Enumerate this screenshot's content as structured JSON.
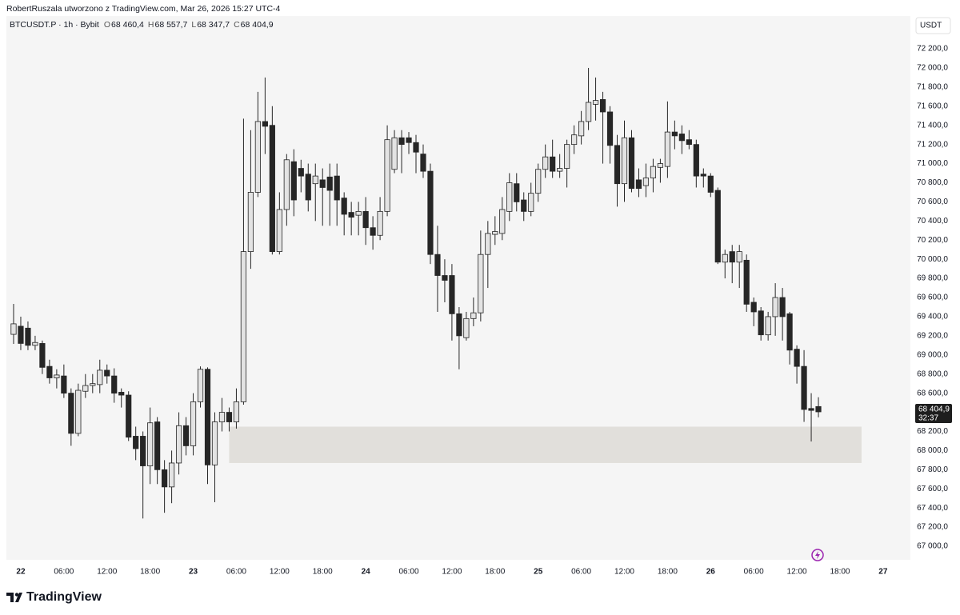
{
  "header": {
    "credit": "RobertRuszala utworzono z TradingView.com, Mar 26, 2026 15:27 UTC-4",
    "symbol": "BTCUSDT.P · 1h · Bybit",
    "ohlc": [
      {
        "key": "O",
        "value": "68 460,4"
      },
      {
        "key": "H",
        "value": "68 557,7"
      },
      {
        "key": "L",
        "value": "68 347,7"
      },
      {
        "key": "C",
        "value": "68 404,9"
      }
    ]
  },
  "currency": "USDT",
  "price_tag": {
    "price": "68 404,9",
    "countdown": "32:37"
  },
  "brand": "TradingView",
  "chart_data": {
    "type": "candlestick",
    "x": [
      -1,
      0,
      1,
      2,
      3,
      4,
      5,
      6,
      7,
      8,
      9,
      10,
      11,
      12,
      13,
      14,
      15,
      16,
      17,
      18,
      19,
      20,
      21,
      22,
      23,
      24,
      25,
      26,
      27,
      28,
      29,
      30,
      31,
      32,
      33,
      34,
      35,
      36,
      37,
      38,
      39,
      40,
      41,
      42,
      43,
      44,
      45,
      46,
      47,
      48,
      49,
      50,
      51,
      52,
      53,
      54,
      55,
      56,
      57,
      58,
      59,
      60,
      61,
      62,
      63,
      64,
      65,
      66,
      67,
      68,
      69,
      70,
      71,
      72,
      73,
      74,
      75,
      76,
      77,
      78,
      79,
      80,
      81,
      82,
      83,
      84,
      85,
      86,
      87,
      88,
      89,
      90,
      91,
      92,
      93,
      94,
      95,
      96,
      97,
      98,
      99,
      100,
      101,
      102,
      103,
      104,
      105,
      106,
      107,
      108,
      109,
      110,
      111
    ],
    "open": [
      69215,
      69300,
      69280,
      69100,
      69120,
      68880,
      68760,
      68780,
      68600,
      68180,
      68620,
      68680,
      68690,
      68840,
      68780,
      68610,
      68580,
      68150,
      68150,
      67840,
      68300,
      67800,
      67620,
      67870,
      68260,
      68050,
      68510,
      68850,
      67850,
      68300,
      68400,
      68300,
      68510,
      70080,
      70700,
      71440,
      71400,
      70080,
      70520,
      71020,
      70950,
      70890,
      70790,
      70830,
      70860,
      70870,
      70640,
      70490,
      70460,
      70500,
      70330,
      70250,
      70500,
      70940,
      71270,
      71270,
      71220,
      71100,
      70920,
      70050,
      69830,
      69830,
      69430,
      69180,
      69380,
      69440,
      70050,
      70260,
      70270,
      70500,
      70790,
      70620,
      70500,
      70690,
      70940,
      71070,
      70920,
      70950,
      71200,
      71290,
      71440,
      71620,
      71670,
      71540,
      71190,
      70790,
      71270,
      70830,
      70770,
      70850,
      70960,
      70970,
      71330,
      71310,
      71250,
      71200,
      70890,
      70870,
      70720,
      69970,
      70080,
      69970,
      69990,
      69550,
      69460,
      69210,
      69400,
      69600,
      69430,
      69060,
      68880,
      68440,
      68460.4
    ],
    "high": [
      69533,
      69400,
      69350,
      69200,
      69150,
      68950,
      68850,
      68900,
      68650,
      68700,
      68800,
      68800,
      68950,
      68900,
      68860,
      68650,
      68620,
      68250,
      68200,
      68450,
      68350,
      67900,
      68000,
      68400,
      68350,
      68600,
      68880,
      68870,
      68400,
      68550,
      68450,
      68650,
      71470,
      71350,
      71750,
      71900,
      71600,
      70700,
      71100,
      71150,
      71040,
      71000,
      71000,
      70950,
      71000,
      71000,
      70700,
      70600,
      70600,
      70650,
      70450,
      70650,
      71400,
      71350,
      71350,
      71330,
      71300,
      71200,
      71000,
      70350,
      70000,
      69950,
      69500,
      69450,
      69600,
      70300,
      70400,
      70450,
      70650,
      70900,
      70900,
      70700,
      70800,
      71000,
      71200,
      71250,
      71100,
      71250,
      71400,
      71550,
      72000,
      71900,
      71750,
      71600,
      71300,
      71450,
      71350,
      70950,
      71000,
      71050,
      71050,
      71650,
      71450,
      71400,
      71350,
      71250,
      70950,
      70900,
      70750,
      70100,
      70150,
      70150,
      70050,
      69600,
      69500,
      69450,
      69750,
      69700,
      69450,
      69100,
      69050,
      68600,
      68557.7
    ],
    "low": [
      69115,
      69050,
      69050,
      69050,
      68800,
      68700,
      68650,
      68550,
      68050,
      68150,
      68550,
      68600,
      68600,
      68700,
      68500,
      68450,
      68100,
      67900,
      67290,
      67650,
      67650,
      67350,
      67450,
      67750,
      67950,
      67950,
      68450,
      67650,
      67460,
      68200,
      68200,
      68230,
      68480,
      69900,
      70650,
      71100,
      70050,
      70050,
      70350,
      70450,
      70700,
      70500,
      70400,
      70350,
      70350,
      70350,
      70250,
      70250,
      70250,
      70150,
      70100,
      70200,
      70450,
      70900,
      70900,
      71100,
      70900,
      70850,
      69950,
      69450,
      69550,
      69150,
      68850,
      69150,
      69300,
      69350,
      69700,
      70150,
      70200,
      70400,
      70500,
      70400,
      70450,
      70600,
      70850,
      70850,
      70850,
      70750,
      71100,
      71200,
      71350,
      71450,
      71000,
      71000,
      70550,
      70600,
      70700,
      70650,
      70650,
      70700,
      70800,
      70850,
      71150,
      71100,
      71150,
      70750,
      70750,
      70650,
      69950,
      69800,
      69750,
      69700,
      69450,
      69300,
      69150,
      69150,
      69200,
      69150,
      68900,
      68700,
      68300,
      68095,
      68347.7
    ],
    "close": [
      69325,
      69120,
      69100,
      69130,
      68870,
      68760,
      68790,
      68600,
      68180,
      68630,
      68680,
      68700,
      68840,
      68780,
      68600,
      68580,
      68140,
      68020,
      67840,
      68290,
      67800,
      67620,
      67870,
      68260,
      68050,
      68510,
      68850,
      67850,
      68300,
      68400,
      68300,
      68510,
      70080,
      70700,
      71440,
      71390,
      70080,
      70520,
      71040,
      70620,
      70870,
      70620,
      70870,
      70750,
      70720,
      70620,
      70470,
      70440,
      70500,
      70330,
      70250,
      70500,
      71250,
      71270,
      71200,
      71220,
      71120,
      70920,
      70050,
      69830,
      69780,
      69430,
      69200,
      69380,
      69440,
      70050,
      70270,
      70290,
      70520,
      70800,
      70600,
      70500,
      70690,
      70940,
      71070,
      70920,
      70950,
      71200,
      71300,
      71440,
      71640,
      71660,
      71540,
      71190,
      70790,
      71270,
      70740,
      70740,
      70850,
      70970,
      71000,
      71330,
      71290,
      71240,
      71200,
      70870,
      70870,
      70700,
      69970,
      70050,
      69970,
      70080,
      69530,
      69450,
      69210,
      69400,
      69600,
      69400,
      69050,
      68880,
      68430,
      68420,
      68404.9
    ],
    "up_color": "#e3e3e3",
    "down_color": "#262626",
    "border_color": "#262626",
    "zone": {
      "x": [
        29,
        117
      ],
      "y": [
        67870,
        68250
      ],
      "color": "#e1dfdb"
    },
    "xlim": [
      -2,
      123.8
    ],
    "ylim": [
      66858,
      72334
    ],
    "grid": false,
    "xticks": [
      {
        "value": 0,
        "label": "22"
      },
      {
        "value": 6,
        "label": "06:00"
      },
      {
        "value": 12,
        "label": "12:00"
      },
      {
        "value": 18,
        "label": "18:00"
      },
      {
        "value": 24,
        "label": "23"
      },
      {
        "value": 30,
        "label": "06:00"
      },
      {
        "value": 36,
        "label": "12:00"
      },
      {
        "value": 42,
        "label": "18:00"
      },
      {
        "value": 48,
        "label": "24"
      },
      {
        "value": 54,
        "label": "06:00"
      },
      {
        "value": 60,
        "label": "12:00"
      },
      {
        "value": 66,
        "label": "18:00"
      },
      {
        "value": 72,
        "label": "25"
      },
      {
        "value": 78,
        "label": "06:00"
      },
      {
        "value": 84,
        "label": "12:00"
      },
      {
        "value": 90,
        "label": "18:00"
      },
      {
        "value": 96,
        "label": "26"
      },
      {
        "value": 102,
        "label": "06:00"
      },
      {
        "value": 108,
        "label": "12:00"
      },
      {
        "value": 114,
        "label": "18:00"
      },
      {
        "value": 120,
        "label": "27"
      }
    ],
    "yticks": [
      {
        "value": 67000,
        "label": "67 000,0"
      },
      {
        "value": 67200,
        "label": "67 200,0"
      },
      {
        "value": 67400,
        "label": "67 400,0"
      },
      {
        "value": 67600,
        "label": "67 600,0"
      },
      {
        "value": 67800,
        "label": "67 800,0"
      },
      {
        "value": 68000,
        "label": "68 000,0"
      },
      {
        "value": 68200,
        "label": "68 200,0"
      },
      {
        "value": 68400,
        "label": "68 400,0"
      },
      {
        "value": 68600,
        "label": "68 600,0"
      },
      {
        "value": 68800,
        "label": "68 800,0"
      },
      {
        "value": 69000,
        "label": "69 000,0"
      },
      {
        "value": 69200,
        "label": "69 200,0"
      },
      {
        "value": 69400,
        "label": "69 400,0"
      },
      {
        "value": 69600,
        "label": "69 600,0"
      },
      {
        "value": 69800,
        "label": "69 800,0"
      },
      {
        "value": 70000,
        "label": "70 000,0"
      },
      {
        "value": 70200,
        "label": "70 200,0"
      },
      {
        "value": 70400,
        "label": "70 400,0"
      },
      {
        "value": 70600,
        "label": "70 600,0"
      },
      {
        "value": 70800,
        "label": "70 800,0"
      },
      {
        "value": 71000,
        "label": "71 000,0"
      },
      {
        "value": 71200,
        "label": "71 200,0"
      },
      {
        "value": 71400,
        "label": "71 400,0"
      },
      {
        "value": 71600,
        "label": "71 600,0"
      },
      {
        "value": 71800,
        "label": "71 800,0"
      },
      {
        "value": 72000,
        "label": "72 000,0"
      },
      {
        "value": 72200,
        "label": "72 200,0"
      }
    ]
  }
}
